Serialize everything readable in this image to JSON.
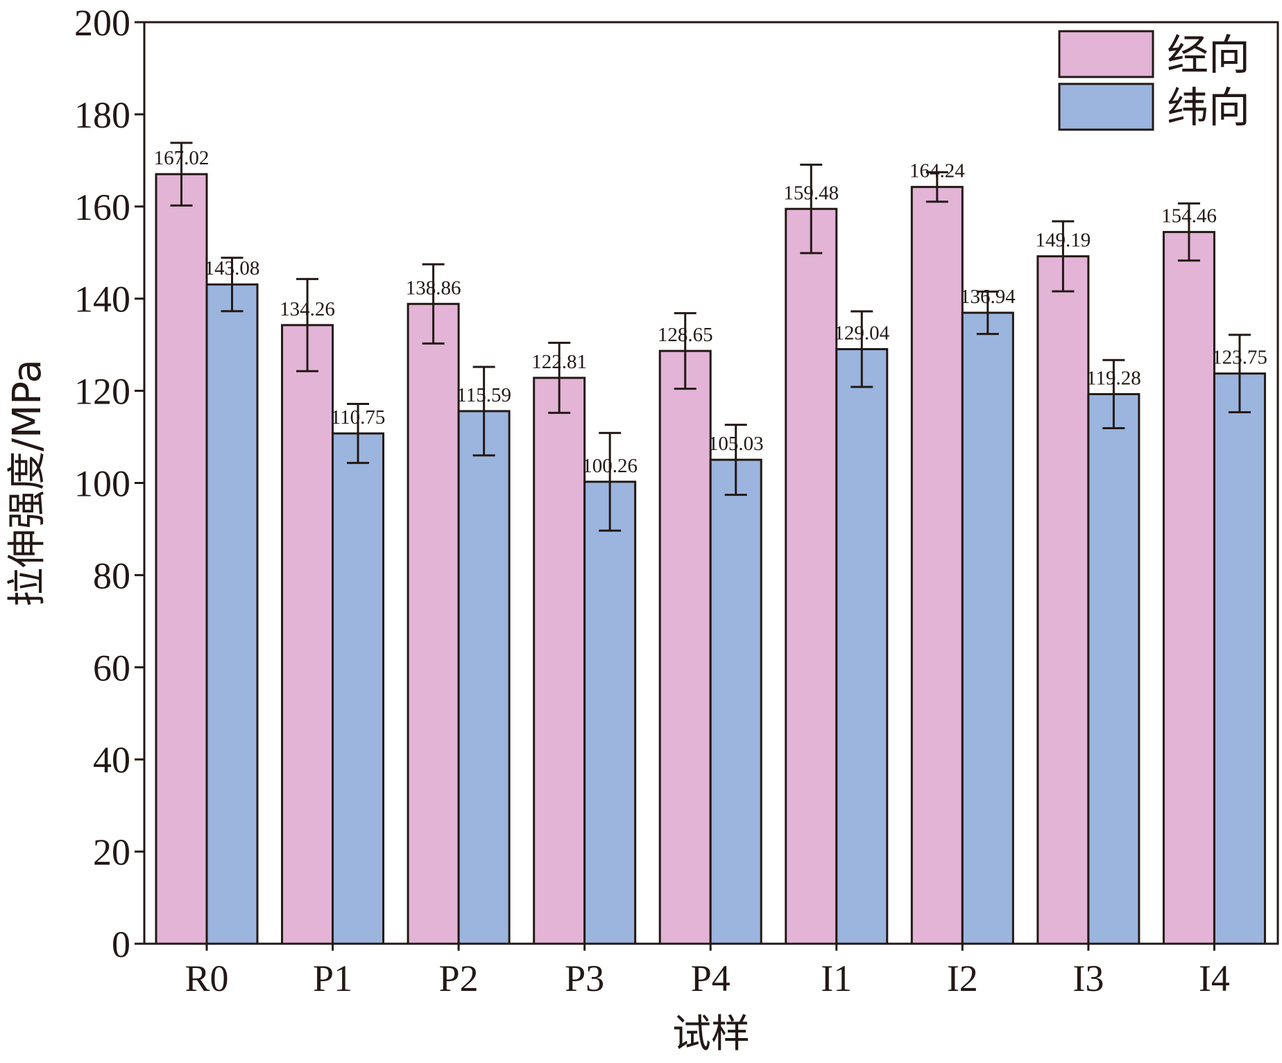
{
  "chart_data": {
    "type": "bar",
    "categories": [
      "R0",
      "P1",
      "P2",
      "P3",
      "P4",
      "I1",
      "I2",
      "I3",
      "I4"
    ],
    "series": [
      {
        "name": "经向",
        "color": "#e3b4d6",
        "values": [
          167.02,
          134.26,
          138.86,
          122.81,
          128.65,
          159.48,
          164.24,
          149.19,
          154.46
        ],
        "labels": [
          "167.02",
          "134.26",
          "138.86",
          "122.81",
          "128.65",
          "159.48",
          "164.24",
          "149.19",
          "154.46"
        ],
        "errors": [
          6.8,
          10.0,
          8.6,
          7.6,
          8.2,
          9.6,
          3.2,
          7.6,
          6.2
        ]
      },
      {
        "name": "纬向",
        "color": "#9bb5de",
        "values": [
          143.08,
          110.75,
          115.59,
          100.26,
          105.03,
          129.04,
          136.94,
          119.28,
          123.75
        ],
        "labels": [
          "143.08",
          "110.75",
          "115.59",
          "100.26",
          "105.03",
          "129.04",
          "136.94",
          "119.28",
          "123.75"
        ],
        "errors": [
          5.8,
          6.4,
          9.6,
          10.6,
          7.6,
          8.2,
          4.6,
          7.4,
          8.4
        ]
      }
    ],
    "xlabel": "试样",
    "ylabel": "拉伸强度/MPa",
    "ylim": [
      0,
      200
    ],
    "yticks": [
      0,
      20,
      40,
      60,
      80,
      100,
      120,
      140,
      160,
      180,
      200
    ],
    "legend_position": "top-right",
    "grid": false,
    "colors": {
      "axis": "#231815"
    }
  }
}
